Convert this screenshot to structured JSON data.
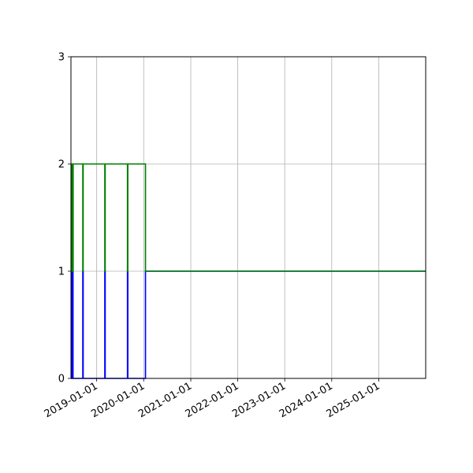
{
  "chart_data": {
    "type": "line",
    "title": "",
    "xlabel": "",
    "ylabel": "",
    "x_axis": {
      "kind": "date",
      "range": [
        "2018-06-15",
        "2025-12-31"
      ],
      "ticks": [
        "2019-01-01",
        "2020-01-01",
        "2021-01-01",
        "2022-01-01",
        "2023-01-01",
        "2024-01-01",
        "2025-01-01"
      ]
    },
    "y_axis": {
      "range": [
        0,
        3
      ],
      "ticks": [
        "0",
        "1",
        "2",
        "3"
      ]
    },
    "grid": true,
    "legend": "none",
    "series": [
      {
        "color": "#0000ff",
        "style": "step",
        "points": [
          {
            "x": "2018-06-17",
            "y": 0
          },
          {
            "x": "2018-06-17",
            "y": 1
          },
          {
            "x": "2018-06-20",
            "y": 1
          },
          {
            "x": "2018-06-20",
            "y": 0
          },
          {
            "x": "2018-06-26",
            "y": 0
          },
          {
            "x": "2018-06-26",
            "y": 1
          },
          {
            "x": "2018-07-01",
            "y": 1
          },
          {
            "x": "2018-07-01",
            "y": 0
          },
          {
            "x": "2018-09-15",
            "y": 0
          },
          {
            "x": "2018-09-15",
            "y": 1
          },
          {
            "x": "2018-09-18",
            "y": 1
          },
          {
            "x": "2018-09-18",
            "y": 0
          },
          {
            "x": "2019-03-05",
            "y": 0
          },
          {
            "x": "2019-03-05",
            "y": 1
          },
          {
            "x": "2019-03-08",
            "y": 1
          },
          {
            "x": "2019-03-08",
            "y": 0
          },
          {
            "x": "2019-08-28",
            "y": 0
          },
          {
            "x": "2019-08-28",
            "y": 1
          },
          {
            "x": "2019-08-31",
            "y": 1
          },
          {
            "x": "2019-08-31",
            "y": 0
          },
          {
            "x": "2020-01-15",
            "y": 0
          },
          {
            "x": "2020-01-15",
            "y": 1
          },
          {
            "x": "2025-12-31",
            "y": 1
          }
        ]
      },
      {
        "color": "#008000",
        "style": "step",
        "points": [
          {
            "x": "2018-06-15",
            "y": 1
          },
          {
            "x": "2018-06-17",
            "y": 1
          },
          {
            "x": "2018-06-17",
            "y": 2
          },
          {
            "x": "2018-06-20",
            "y": 2
          },
          {
            "x": "2018-06-20",
            "y": 1
          },
          {
            "x": "2018-06-26",
            "y": 1
          },
          {
            "x": "2018-06-26",
            "y": 2
          },
          {
            "x": "2018-07-01",
            "y": 2
          },
          {
            "x": "2018-07-01",
            "y": 1
          },
          {
            "x": "2018-07-02",
            "y": 1
          },
          {
            "x": "2018-07-02",
            "y": 2
          },
          {
            "x": "2018-09-15",
            "y": 2
          },
          {
            "x": "2018-09-15",
            "y": 1
          },
          {
            "x": "2018-09-18",
            "y": 1
          },
          {
            "x": "2018-09-18",
            "y": 2
          },
          {
            "x": "2019-03-05",
            "y": 2
          },
          {
            "x": "2019-03-05",
            "y": 1
          },
          {
            "x": "2019-03-08",
            "y": 1
          },
          {
            "x": "2019-03-08",
            "y": 2
          },
          {
            "x": "2019-08-28",
            "y": 2
          },
          {
            "x": "2019-08-28",
            "y": 1
          },
          {
            "x": "2019-08-31",
            "y": 1
          },
          {
            "x": "2019-08-31",
            "y": 2
          },
          {
            "x": "2020-01-15",
            "y": 2
          },
          {
            "x": "2020-01-15",
            "y": 1
          },
          {
            "x": "2025-12-31",
            "y": 1
          }
        ]
      }
    ]
  }
}
